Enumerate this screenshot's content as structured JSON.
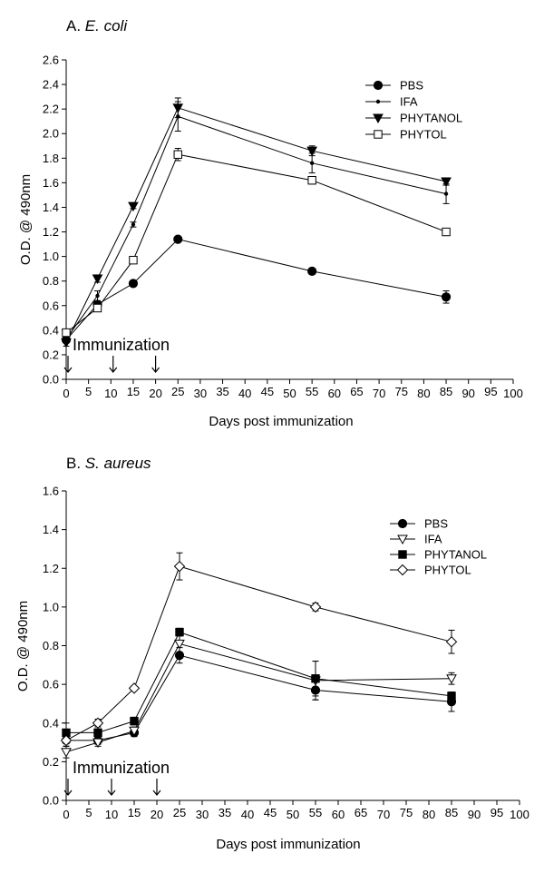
{
  "chart_data": [
    {
      "type": "line",
      "panel_letter": "A.",
      "panel_organism": "E. coli",
      "xlabel": "Days post immunization",
      "ylabel": "O.D. @ 490nm",
      "xlim": [
        0,
        100
      ],
      "ylim": [
        0,
        2.6
      ],
      "x_ticks": [
        0,
        5,
        10,
        15,
        20,
        25,
        30,
        35,
        40,
        45,
        50,
        55,
        60,
        65,
        70,
        75,
        80,
        85,
        90,
        95,
        100
      ],
      "y_ticks": [
        "0.0",
        "0.2",
        "0.4",
        "0.6",
        "0.8",
        "1.0",
        "1.2",
        "1.4",
        "1.6",
        "1.8",
        "2.0",
        "2.2",
        "2.4",
        "2.6"
      ],
      "legend_position": "top-right",
      "grid": false,
      "annotation": {
        "text": "Immunization",
        "arrows_at_days": [
          0,
          10.5,
          20
        ]
      },
      "x": [
        0,
        7,
        15,
        25,
        55,
        85
      ],
      "series": [
        {
          "name": "PBS",
          "marker": "filled-circle",
          "values": [
            0.32,
            0.61,
            0.78,
            1.14,
            0.88,
            0.67
          ],
          "errors": [
            0.02,
            0.02,
            0.02,
            0.02,
            0.02,
            0.05
          ]
        },
        {
          "name": "IFA",
          "marker": "small-dot",
          "values": [
            0.33,
            0.68,
            1.26,
            2.14,
            1.76,
            1.51
          ],
          "errors": [
            0.03,
            0.04,
            0.02,
            0.12,
            0.08,
            0.08
          ]
        },
        {
          "name": "PHYTANOL",
          "marker": "filled-triangle-down",
          "values": [
            0.3,
            0.82,
            1.41,
            2.21,
            1.86,
            1.61
          ],
          "errors": [
            0.03,
            0.03,
            0.02,
            0.08,
            0.04,
            0.03
          ]
        },
        {
          "name": "PHYTOL",
          "marker": "open-square",
          "values": [
            0.38,
            0.58,
            0.97,
            1.83,
            1.62,
            1.2
          ],
          "errors": [
            0.02,
            0.03,
            0.02,
            0.05,
            0.03,
            0.02
          ]
        }
      ]
    },
    {
      "type": "line",
      "panel_letter": "B.",
      "panel_organism": "S. aureus",
      "xlabel": "Days post immunization",
      "ylabel": "O.D. @ 490nm",
      "xlim": [
        0,
        100
      ],
      "ylim": [
        0,
        1.6
      ],
      "x_ticks": [
        0,
        5,
        10,
        15,
        20,
        25,
        30,
        35,
        40,
        45,
        50,
        55,
        60,
        65,
        70,
        75,
        80,
        85,
        90,
        95,
        100
      ],
      "y_ticks": [
        "0.0",
        "0.2",
        "0.4",
        "0.6",
        "0.8",
        "1.0",
        "1.2",
        "1.4",
        "1.6"
      ],
      "legend_position": "top-right",
      "grid": false,
      "annotation": {
        "text": "Immunization",
        "arrows_at_days": [
          0,
          10,
          20
        ]
      },
      "x": [
        0,
        7,
        15,
        25,
        55,
        85
      ],
      "series": [
        {
          "name": "PBS",
          "marker": "filled-circle",
          "values": [
            0.31,
            0.31,
            0.35,
            0.75,
            0.57,
            0.51
          ],
          "errors": [
            0.03,
            0.02,
            0.02,
            0.04,
            0.05,
            0.05
          ]
        },
        {
          "name": "IFA",
          "marker": "open-triangle-down",
          "values": [
            0.25,
            0.3,
            0.36,
            0.81,
            0.62,
            0.63
          ],
          "errors": [
            0.03,
            0.02,
            0.02,
            0.05,
            0.1,
            0.03
          ]
        },
        {
          "name": "PHYTANOL",
          "marker": "filled-square",
          "values": [
            0.35,
            0.35,
            0.41,
            0.87,
            0.63,
            0.54
          ],
          "errors": [
            0.05,
            0.02,
            0.02,
            0.02,
            0.09,
            0.02
          ]
        },
        {
          "name": "PHYTOL",
          "marker": "open-diamond",
          "values": [
            0.31,
            0.4,
            0.58,
            1.21,
            1.0,
            0.82
          ],
          "errors": [
            0.03,
            0.02,
            0.01,
            0.07,
            0.02,
            0.06
          ]
        }
      ]
    }
  ]
}
